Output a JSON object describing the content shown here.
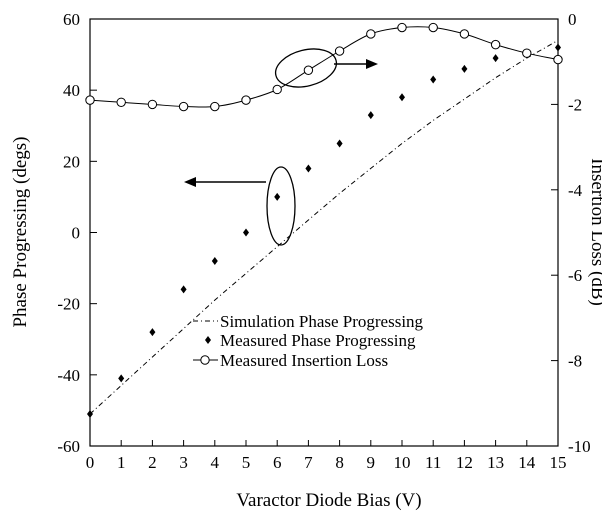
{
  "chart_data": {
    "type": "line",
    "xlabel": "Varactor Diode  Bias (V)",
    "ylabel": "Phase Progressing (degs)",
    "y2label": "Insertion Loss (dB)",
    "xlim": [
      0,
      15
    ],
    "ylim": [
      -60,
      60
    ],
    "y2lim": [
      -10,
      0
    ],
    "x_ticks": [
      "0",
      "1",
      "2",
      "3",
      "4",
      "5",
      "6",
      "7",
      "8",
      "9",
      "10",
      "11",
      "12",
      "13",
      "14",
      "15"
    ],
    "y_ticks": [
      "60",
      "40",
      "20",
      "0",
      "-20",
      "-40",
      "-60"
    ],
    "y2_ticks": [
      "0",
      "-2",
      "-4",
      "-6",
      "-8",
      "-10"
    ],
    "grid": false,
    "legend_position": "lower-right",
    "series": [
      {
        "name": "Simulation Phase Progressing",
        "axis": "left",
        "style": "dash-dot",
        "x": [
          0,
          1,
          2,
          3,
          4,
          5,
          6,
          7,
          8,
          9,
          10,
          11,
          12,
          13,
          14,
          15
        ],
        "y": [
          -51,
          -43,
          -35,
          -27,
          -19,
          -11.5,
          -4,
          3.5,
          11,
          18,
          25,
          31.5,
          37.5,
          43.5,
          49,
          54
        ]
      },
      {
        "name": "Measured Phase Progressing",
        "axis": "left",
        "style": "diamond",
        "x": [
          0,
          1,
          2,
          3,
          4,
          5,
          6,
          7,
          8,
          9,
          10,
          11,
          12,
          13,
          14,
          15
        ],
        "y": [
          -51,
          -41,
          -28,
          -16,
          -8,
          0,
          10,
          18,
          25,
          33,
          38,
          43,
          46,
          49,
          50,
          52
        ]
      },
      {
        "name": "Measured Insertion Loss",
        "axis": "right",
        "style": "line-circle",
        "x": [
          0,
          1,
          2,
          3,
          4,
          5,
          6,
          7,
          8,
          9,
          10,
          11,
          12,
          13,
          14,
          15
        ],
        "y": [
          -1.9,
          -1.95,
          -2.0,
          -2.05,
          -2.05,
          -1.9,
          -1.65,
          -1.2,
          -0.75,
          -0.35,
          -0.2,
          -0.2,
          -0.35,
          -0.6,
          -0.8,
          -0.95
        ]
      }
    ]
  }
}
